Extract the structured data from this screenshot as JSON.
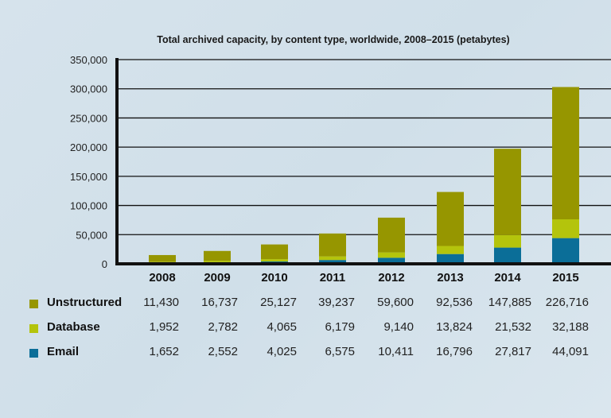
{
  "chart_data": {
    "type": "bar",
    "stacked": true,
    "title": "Total archived capacity, by content type, worldwide, 2008–2015 (petabytes)",
    "xlabel": "",
    "ylabel": "",
    "categories": [
      "2008",
      "2009",
      "2010",
      "2011",
      "2012",
      "2013",
      "2014",
      "2015"
    ],
    "ylim": [
      0,
      350000
    ],
    "yticks": [
      "0",
      "50,000",
      "100,000",
      "150,000",
      "200,000",
      "250,000",
      "300,000",
      "350,000"
    ],
    "grid": true,
    "legend_placement": "bottom (table rows)",
    "series": [
      {
        "name": "Email",
        "color": "#0b6e98",
        "values": [
          1652,
          2552,
          4025,
          6575,
          10411,
          16796,
          27817,
          44091
        ],
        "labels": [
          "1,652",
          "2,552",
          "4,025",
          "6,575",
          "10,411",
          "16,796",
          "27,817",
          "44,091"
        ]
      },
      {
        "name": "Database",
        "color": "#b4c40c",
        "values": [
          1952,
          2782,
          4065,
          6179,
          9140,
          13824,
          21532,
          32188
        ],
        "labels": [
          "1,952",
          "2,782",
          "4,065",
          "6,179",
          "9,140",
          "13,824",
          "21,532",
          "32,188"
        ]
      },
      {
        "name": "Unstructured",
        "color": "#969600",
        "values": [
          11430,
          16737,
          25127,
          39237,
          59600,
          92536,
          147885,
          226716
        ],
        "labels": [
          "11,430",
          "16,737",
          "25,127",
          "39,237",
          "59,600",
          "92,536",
          "147,885",
          "226,716"
        ]
      }
    ]
  }
}
